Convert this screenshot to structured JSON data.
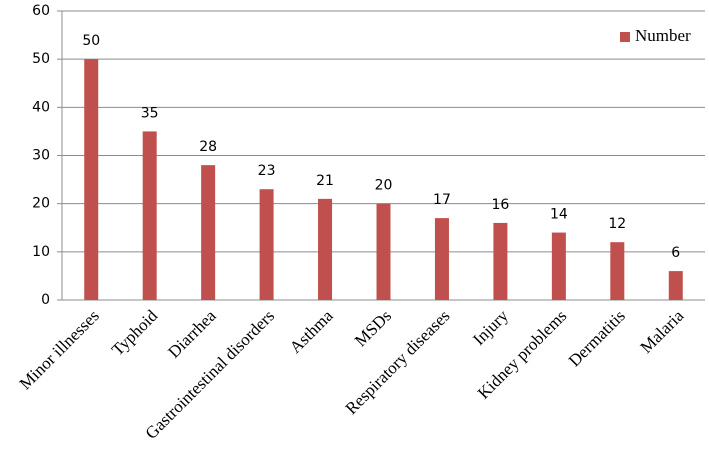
{
  "chart_data": {
    "type": "bar",
    "categories": [
      "Minor illnesses",
      "Typhoid",
      "Diarrhea",
      "Gastrointestinal disorders",
      "Asthma",
      "MSDs",
      "Respiratory diseases",
      "Injury",
      "Kidney problems",
      "Dermatitis",
      "Malaria"
    ],
    "series": [
      {
        "name": "Number",
        "color": "#c0504d",
        "values": [
          50,
          35,
          28,
          23,
          21,
          20,
          17,
          16,
          14,
          12,
          6
        ]
      }
    ],
    "ylim": [
      0,
      60
    ],
    "yticks": [
      0,
      10,
      20,
      30,
      40,
      50,
      60
    ],
    "grid": true,
    "legend": "top-right"
  }
}
